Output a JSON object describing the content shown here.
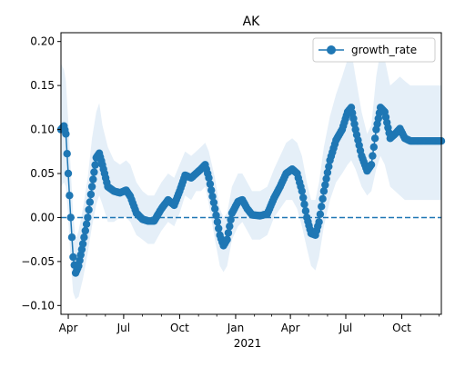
{
  "chart_data": {
    "type": "line",
    "title": "AK",
    "xlabel": "",
    "year_label": "2021",
    "ylabel": "",
    "xlim": [
      "2020-03-20",
      "2021-12-05"
    ],
    "ylim": [
      -0.11,
      0.21
    ],
    "yticks": [
      -0.1,
      -0.05,
      0.0,
      0.05,
      0.1,
      0.15,
      0.2
    ],
    "ytick_labels": [
      "−0.10",
      "−0.05",
      "0.00",
      "0.05",
      "0.10",
      "0.15",
      "0.20"
    ],
    "xticks": [
      {
        "date": "2020-04-01",
        "label": "Apr"
      },
      {
        "date": "2020-07-01",
        "label": "Jul"
      },
      {
        "date": "2020-10-01",
        "label": "Oct"
      },
      {
        "date": "2021-01-01",
        "label": "Jan"
      },
      {
        "date": "2021-04-01",
        "label": "Apr"
      },
      {
        "date": "2021-07-01",
        "label": "Jul"
      },
      {
        "date": "2021-10-01",
        "label": "Oct"
      }
    ],
    "grid": false,
    "legend": {
      "position": "top-right",
      "entries": [
        "growth_rate"
      ]
    },
    "reference_line": {
      "y": 0,
      "style": "dashed",
      "color": "#1f77b4"
    },
    "series": [
      {
        "name": "growth_rate",
        "color": "#1f77b4",
        "marker": "circle",
        "band_color": "#dce9f5",
        "points": [
          {
            "x": "2020-03-20",
            "y": 0.1,
            "lo": 0.035,
            "hi": 0.175
          },
          {
            "x": "2020-03-25",
            "y": 0.104,
            "lo": 0.04,
            "hi": 0.168
          },
          {
            "x": "2020-03-28",
            "y": 0.095,
            "lo": 0.035,
            "hi": 0.155
          },
          {
            "x": "2020-04-01",
            "y": 0.05,
            "lo": 0.0,
            "hi": 0.11
          },
          {
            "x": "2020-04-05",
            "y": 0.0,
            "lo": -0.05,
            "hi": 0.055
          },
          {
            "x": "2020-04-09",
            "y": -0.045,
            "lo": -0.085,
            "hi": 0.005
          },
          {
            "x": "2020-04-13",
            "y": -0.063,
            "lo": -0.093,
            "hi": -0.025
          },
          {
            "x": "2020-04-18",
            "y": -0.055,
            "lo": -0.09,
            "hi": -0.015
          },
          {
            "x": "2020-04-25",
            "y": -0.03,
            "lo": -0.07,
            "hi": 0.01
          },
          {
            "x": "2020-05-03",
            "y": 0.0,
            "lo": -0.04,
            "hi": 0.045
          },
          {
            "x": "2020-05-10",
            "y": 0.035,
            "lo": -0.01,
            "hi": 0.09
          },
          {
            "x": "2020-05-17",
            "y": 0.068,
            "lo": 0.015,
            "hi": 0.12
          },
          {
            "x": "2020-05-22",
            "y": 0.073,
            "lo": 0.025,
            "hi": 0.13
          },
          {
            "x": "2020-05-27",
            "y": 0.06,
            "lo": 0.015,
            "hi": 0.105
          },
          {
            "x": "2020-06-05",
            "y": 0.035,
            "lo": -0.005,
            "hi": 0.08
          },
          {
            "x": "2020-06-15",
            "y": 0.03,
            "lo": -0.005,
            "hi": 0.065
          },
          {
            "x": "2020-06-25",
            "y": 0.028,
            "lo": 0.0,
            "hi": 0.06
          },
          {
            "x": "2020-07-05",
            "y": 0.031,
            "lo": 0.0,
            "hi": 0.065
          },
          {
            "x": "2020-07-12",
            "y": 0.024,
            "lo": -0.005,
            "hi": 0.06
          },
          {
            "x": "2020-07-22",
            "y": 0.005,
            "lo": -0.02,
            "hi": 0.04
          },
          {
            "x": "2020-08-01",
            "y": -0.002,
            "lo": -0.025,
            "hi": 0.03
          },
          {
            "x": "2020-08-10",
            "y": -0.004,
            "lo": -0.03,
            "hi": 0.025
          },
          {
            "x": "2020-08-20",
            "y": -0.004,
            "lo": -0.03,
            "hi": 0.025
          },
          {
            "x": "2020-09-01",
            "y": 0.01,
            "lo": -0.015,
            "hi": 0.04
          },
          {
            "x": "2020-09-12",
            "y": 0.02,
            "lo": -0.005,
            "hi": 0.05
          },
          {
            "x": "2020-09-22",
            "y": 0.014,
            "lo": -0.01,
            "hi": 0.045
          },
          {
            "x": "2020-10-01",
            "y": 0.03,
            "lo": 0.005,
            "hi": 0.06
          },
          {
            "x": "2020-10-10",
            "y": 0.048,
            "lo": 0.025,
            "hi": 0.075
          },
          {
            "x": "2020-10-20",
            "y": 0.045,
            "lo": 0.02,
            "hi": 0.07
          },
          {
            "x": "2020-10-28",
            "y": 0.05,
            "lo": 0.03,
            "hi": 0.075
          },
          {
            "x": "2020-11-05",
            "y": 0.055,
            "lo": 0.03,
            "hi": 0.08
          },
          {
            "x": "2020-11-12",
            "y": 0.06,
            "lo": 0.035,
            "hi": 0.085
          },
          {
            "x": "2020-11-18",
            "y": 0.045,
            "lo": 0.015,
            "hi": 0.075
          },
          {
            "x": "2020-11-28",
            "y": 0.01,
            "lo": -0.025,
            "hi": 0.045
          },
          {
            "x": "2020-12-06",
            "y": -0.02,
            "lo": -0.055,
            "hi": 0.01
          },
          {
            "x": "2020-12-12",
            "y": -0.032,
            "lo": -0.062,
            "hi": 0.0
          },
          {
            "x": "2020-12-18",
            "y": -0.025,
            "lo": -0.055,
            "hi": 0.005
          },
          {
            "x": "2020-12-26",
            "y": 0.005,
            "lo": -0.025,
            "hi": 0.035
          },
          {
            "x": "2021-01-05",
            "y": 0.018,
            "lo": -0.01,
            "hi": 0.05
          },
          {
            "x": "2021-01-12",
            "y": 0.02,
            "lo": -0.005,
            "hi": 0.05
          },
          {
            "x": "2021-01-20",
            "y": 0.01,
            "lo": -0.015,
            "hi": 0.04
          },
          {
            "x": "2021-01-28",
            "y": 0.003,
            "lo": -0.025,
            "hi": 0.03
          },
          {
            "x": "2021-02-10",
            "y": 0.002,
            "lo": -0.025,
            "hi": 0.03
          },
          {
            "x": "2021-02-22",
            "y": 0.004,
            "lo": -0.02,
            "hi": 0.035
          },
          {
            "x": "2021-03-05",
            "y": 0.022,
            "lo": 0.0,
            "hi": 0.055
          },
          {
            "x": "2021-03-15",
            "y": 0.035,
            "lo": 0.01,
            "hi": 0.07
          },
          {
            "x": "2021-03-25",
            "y": 0.05,
            "lo": 0.02,
            "hi": 0.085
          },
          {
            "x": "2021-04-04",
            "y": 0.055,
            "lo": 0.02,
            "hi": 0.09
          },
          {
            "x": "2021-04-12",
            "y": 0.05,
            "lo": 0.01,
            "hi": 0.085
          },
          {
            "x": "2021-04-20",
            "y": 0.03,
            "lo": -0.01,
            "hi": 0.07
          },
          {
            "x": "2021-04-28",
            "y": 0.0,
            "lo": -0.035,
            "hi": 0.04
          },
          {
            "x": "2021-05-05",
            "y": -0.018,
            "lo": -0.055,
            "hi": 0.02
          },
          {
            "x": "2021-05-12",
            "y": -0.02,
            "lo": -0.06,
            "hi": 0.02
          },
          {
            "x": "2021-05-18",
            "y": -0.005,
            "lo": -0.045,
            "hi": 0.04
          },
          {
            "x": "2021-05-26",
            "y": 0.03,
            "lo": -0.01,
            "hi": 0.08
          },
          {
            "x": "2021-06-05",
            "y": 0.065,
            "lo": 0.02,
            "hi": 0.115
          },
          {
            "x": "2021-06-15",
            "y": 0.088,
            "lo": 0.04,
            "hi": 0.14
          },
          {
            "x": "2021-06-25",
            "y": 0.1,
            "lo": 0.05,
            "hi": 0.16
          },
          {
            "x": "2021-07-04",
            "y": 0.12,
            "lo": 0.06,
            "hi": 0.18
          },
          {
            "x": "2021-07-10",
            "y": 0.125,
            "lo": 0.065,
            "hi": 0.19
          },
          {
            "x": "2021-07-17",
            "y": 0.1,
            "lo": 0.055,
            "hi": 0.16
          },
          {
            "x": "2021-07-27",
            "y": 0.07,
            "lo": 0.035,
            "hi": 0.12
          },
          {
            "x": "2021-08-05",
            "y": 0.053,
            "lo": 0.025,
            "hi": 0.095
          },
          {
            "x": "2021-08-12",
            "y": 0.06,
            "lo": 0.03,
            "hi": 0.105
          },
          {
            "x": "2021-08-20",
            "y": 0.1,
            "lo": 0.055,
            "hi": 0.16
          },
          {
            "x": "2021-08-27",
            "y": 0.125,
            "lo": 0.07,
            "hi": 0.19
          },
          {
            "x": "2021-09-03",
            "y": 0.12,
            "lo": 0.06,
            "hi": 0.18
          },
          {
            "x": "2021-09-12",
            "y": 0.09,
            "lo": 0.035,
            "hi": 0.15
          },
          {
            "x": "2021-09-20",
            "y": 0.095,
            "lo": 0.03,
            "hi": 0.155
          },
          {
            "x": "2021-09-28",
            "y": 0.101,
            "lo": 0.025,
            "hi": 0.16
          },
          {
            "x": "2021-10-06",
            "y": 0.09,
            "lo": 0.02,
            "hi": 0.155
          },
          {
            "x": "2021-10-15",
            "y": 0.087,
            "lo": 0.02,
            "hi": 0.15
          },
          {
            "x": "2021-11-01",
            "y": 0.087,
            "lo": 0.02,
            "hi": 0.15
          },
          {
            "x": "2021-11-20",
            "y": 0.087,
            "lo": 0.02,
            "hi": 0.15
          },
          {
            "x": "2021-12-05",
            "y": 0.087,
            "lo": 0.02,
            "hi": 0.15
          }
        ]
      }
    ]
  }
}
